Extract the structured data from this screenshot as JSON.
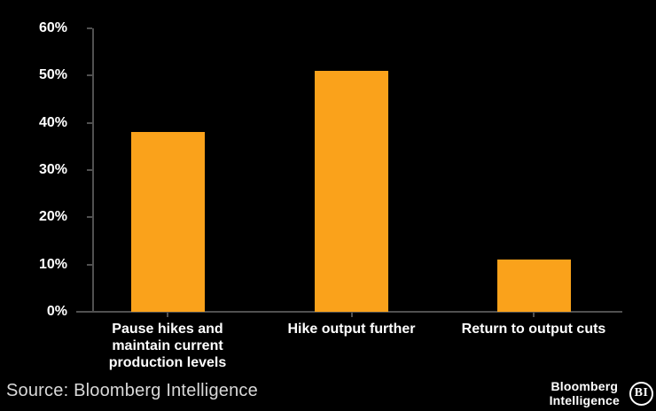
{
  "chart_data": {
    "type": "bar",
    "title": "",
    "xlabel": "",
    "ylabel": "",
    "categories": [
      "Pause hikes and maintain current production levels",
      "Hike output further",
      "Return to output cuts"
    ],
    "category_lines": [
      [
        "Pause hikes and",
        "maintain current",
        "production levels"
      ],
      [
        "Hike output further"
      ],
      [
        "Return to output cuts"
      ]
    ],
    "values": [
      38,
      51,
      11
    ],
    "unit": "%",
    "ylim": [
      0,
      60
    ],
    "y_ticks": [
      0,
      10,
      20,
      30,
      40,
      50,
      60
    ],
    "y_tick_labels": [
      "0%",
      "10%",
      "20%",
      "30%",
      "40%",
      "50%",
      "60%"
    ],
    "grid": false,
    "legend": null,
    "bar_color": "#FAA21B",
    "axis_color": "#505050",
    "text_color": "#FFFFFF",
    "background": "#000000"
  },
  "footer": {
    "source": "Source: Bloomberg Intelligence",
    "brand": {
      "line1": "Bloomberg",
      "line2": "Intelligence",
      "badge": "BI"
    }
  }
}
